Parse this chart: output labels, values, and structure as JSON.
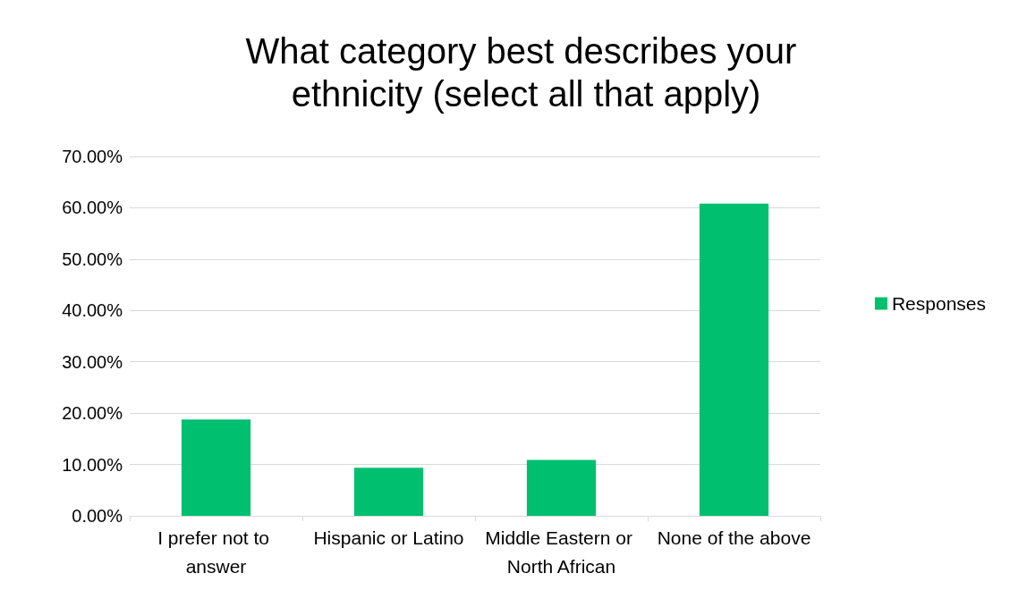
{
  "chart_data": {
    "type": "bar",
    "title": "What category best describes your ethnicity (select all that apply)",
    "categories": [
      "I prefer not to answer",
      "Hispanic or Latino",
      "Middle Eastern or North African",
      "None of the above"
    ],
    "series": [
      {
        "name": "Responses",
        "color": "#00bf6f",
        "values": [
          18.75,
          9.38,
          10.9,
          60.8
        ]
      }
    ],
    "ylim": [
      0,
      70
    ],
    "yticks": [
      {
        "value": 0,
        "label": "0.00%"
      },
      {
        "value": 10,
        "label": "10.00%"
      },
      {
        "value": 20,
        "label": "20.00%"
      },
      {
        "value": 30,
        "label": "30.00%"
      },
      {
        "value": 40,
        "label": "40.00%"
      },
      {
        "value": 50,
        "label": "50.00%"
      },
      {
        "value": 60,
        "label": "60.00%"
      },
      {
        "value": 70,
        "label": "70.00%"
      }
    ],
    "grid": "y",
    "legend": "right"
  }
}
